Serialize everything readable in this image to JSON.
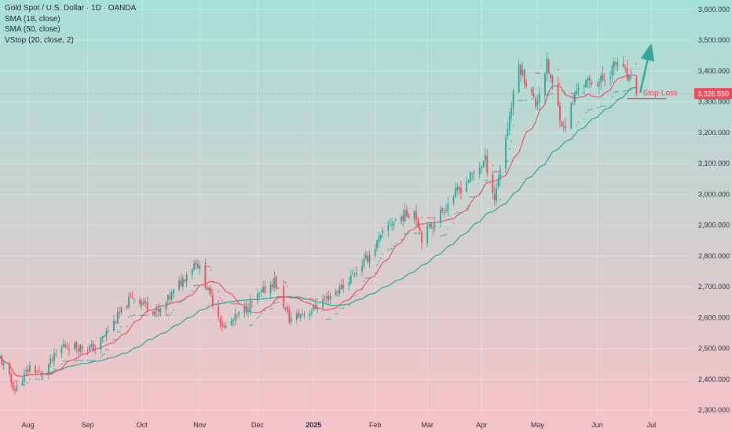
{
  "header": {
    "symbol_line": "Gold Spot / U.S. Dollar · 1D · OANDA",
    "indicators": [
      "SMA (18, close)",
      "SMA (50, close)",
      "VStop (20, close, 2)"
    ]
  },
  "colors": {
    "bg_top": "#a6e0d6",
    "bg_bottom": "#f6c2c9",
    "up": "#2aa694",
    "down": "#ef4a5c",
    "sma18": "#ef4a5c",
    "sma50": "#2aa694",
    "vstop_down": "#ef4a5c",
    "vstop_up": "#2aa694",
    "arrow": "#35a59a",
    "price_label": "#ef4a5c",
    "axis_text": "#2c3340"
  },
  "price_label": "3,326.550",
  "stop_loss_label": "Stop Loss",
  "chart_data": {
    "type": "candlestick",
    "title": "Gold Spot / U.S. Dollar · 1D · OANDA",
    "series": [
      "SMA (18, close)",
      "SMA (50, close)",
      "VStop (20, close, 2)"
    ],
    "y_ticks": [
      {
        "value": 2300,
        "label": "2,300.000"
      },
      {
        "value": 2400,
        "label": "2,400.000"
      },
      {
        "value": 2500,
        "label": "2,500.000"
      },
      {
        "value": 2600,
        "label": "2,600.000"
      },
      {
        "value": 2700,
        "label": "2,700.000"
      },
      {
        "value": 2800,
        "label": "2,800.000"
      },
      {
        "value": 2900,
        "label": "2,900.000"
      },
      {
        "value": 3000,
        "label": "3,000.000"
      },
      {
        "value": 3100,
        "label": "3,100.000"
      },
      {
        "value": 3200,
        "label": "3,200.000"
      },
      {
        "value": 3300,
        "label": "3,300.000"
      },
      {
        "value": 3400,
        "label": "3,400.000"
      },
      {
        "value": 3500,
        "label": "3,500.000"
      },
      {
        "value": 3600,
        "label": "3,600.000"
      }
    ],
    "x_ticks": [
      {
        "label": "Aug",
        "date": "2024-08-01"
      },
      {
        "label": "Sep",
        "date": "2024-09-02"
      },
      {
        "label": "Oct",
        "date": "2024-10-01"
      },
      {
        "label": "Nov",
        "date": "2024-11-01"
      },
      {
        "label": "Dec",
        "date": "2024-12-02"
      },
      {
        "label": "2025",
        "date": "2025-01-01",
        "bold": true
      },
      {
        "label": "Feb",
        "date": "2025-02-03"
      },
      {
        "label": "Mar",
        "date": "2025-03-03"
      },
      {
        "label": "Apr",
        "date": "2025-04-01"
      },
      {
        "label": "May",
        "date": "2025-05-01"
      },
      {
        "label": "Jun",
        "date": "2025-06-02"
      },
      {
        "label": "Jul",
        "date": "2025-07-01"
      }
    ],
    "x_range": [
      "2024-07-17",
      "2025-07-24"
    ],
    "ylim": [
      2275,
      3630
    ],
    "last_price": 3326.55,
    "stop_loss": {
      "value": 3310,
      "from_date": "2025-06-18",
      "to_date": "2025-07-09"
    },
    "target_arrow": {
      "from_date": "2025-06-25",
      "from_value": 3330,
      "to_date": "2025-07-01",
      "to_value": 3490
    },
    "anchors": [
      {
        "date": "2024-07-17",
        "close": 2470
      },
      {
        "date": "2024-07-25",
        "close": 2365
      },
      {
        "date": "2024-08-02",
        "close": 2440
      },
      {
        "date": "2024-08-08",
        "close": 2415
      },
      {
        "date": "2024-08-20",
        "close": 2510
      },
      {
        "date": "2024-08-30",
        "close": 2505
      },
      {
        "date": "2024-09-06",
        "close": 2500
      },
      {
        "date": "2024-09-26",
        "close": 2670
      },
      {
        "date": "2024-10-10",
        "close": 2615
      },
      {
        "date": "2024-10-30",
        "close": 2785
      },
      {
        "date": "2024-11-14",
        "close": 2565
      },
      {
        "date": "2024-11-25",
        "close": 2625
      },
      {
        "date": "2024-12-11",
        "close": 2720
      },
      {
        "date": "2024-12-19",
        "close": 2595
      },
      {
        "date": "2024-12-31",
        "close": 2625
      },
      {
        "date": "2025-01-17",
        "close": 2705
      },
      {
        "date": "2025-01-30",
        "close": 2795
      },
      {
        "date": "2025-02-11",
        "close": 2905
      },
      {
        "date": "2025-02-24",
        "close": 2950
      },
      {
        "date": "2025-02-28",
        "close": 2860
      },
      {
        "date": "2025-03-17",
        "close": 2995
      },
      {
        "date": "2025-04-03",
        "close": 3110
      },
      {
        "date": "2025-04-08",
        "close": 2985
      },
      {
        "date": "2025-04-21",
        "close": 3420
      },
      {
        "date": "2025-04-30",
        "close": 3290
      },
      {
        "date": "2025-05-06",
        "close": 3420
      },
      {
        "date": "2025-05-15",
        "close": 3210
      },
      {
        "date": "2025-05-23",
        "close": 3355
      },
      {
        "date": "2025-06-05",
        "close": 3370
      },
      {
        "date": "2025-06-13",
        "close": 3430
      },
      {
        "date": "2025-06-23",
        "close": 3326.55
      }
    ]
  }
}
